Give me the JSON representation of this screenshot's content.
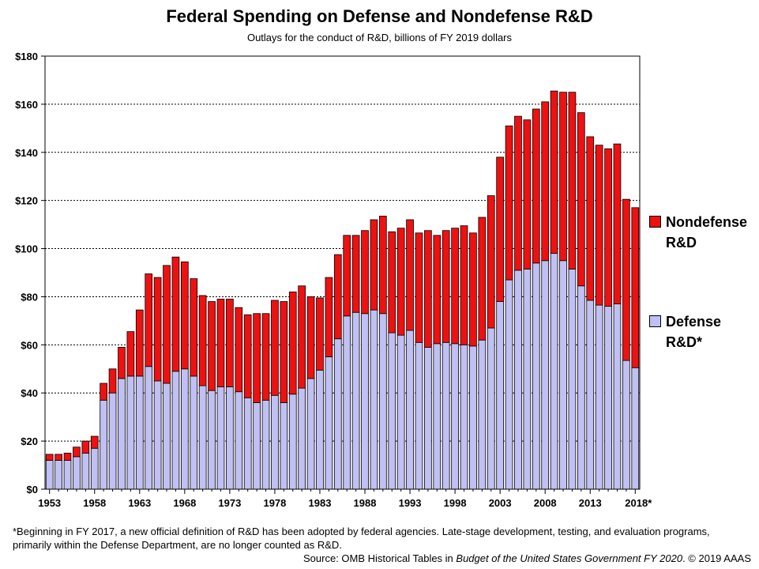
{
  "chart_data": {
    "type": "bar",
    "stacked": true,
    "title": "Federal Spending on Defense and Nondefense R&D",
    "subtitle": "Outlays for the conduct of R&D, billions of FY 2019  dollars",
    "x": [
      1953,
      1954,
      1955,
      1956,
      1957,
      1958,
      1959,
      1960,
      1961,
      1962,
      1963,
      1964,
      1965,
      1966,
      1967,
      1968,
      1969,
      1970,
      1971,
      1972,
      1973,
      1974,
      1975,
      1976,
      1977,
      1978,
      1979,
      1980,
      1981,
      1982,
      1983,
      1984,
      1985,
      1986,
      1987,
      1988,
      1989,
      1990,
      1991,
      1992,
      1993,
      1994,
      1995,
      1996,
      1997,
      1998,
      1999,
      2000,
      2001,
      2002,
      2003,
      2004,
      2005,
      2006,
      2007,
      2008,
      2009,
      2010,
      2011,
      2012,
      2013,
      2014,
      2015,
      2016,
      2017,
      2018
    ],
    "x_tick_labels": [
      "1953",
      "1958",
      "1963",
      "1968",
      "1973",
      "1978",
      "1983",
      "1988",
      "1993",
      "1998",
      "2003",
      "2008",
      "2013",
      "2018*"
    ],
    "x_tick_values": [
      1953,
      1958,
      1963,
      1968,
      1973,
      1978,
      1983,
      1988,
      1993,
      1998,
      2003,
      2008,
      2013,
      2018
    ],
    "y_tick_labels": [
      "$0",
      "$20",
      "$40",
      "$60",
      "$80",
      "$100",
      "$120",
      "$140",
      "$160",
      "$180"
    ],
    "ylim": [
      0,
      180
    ],
    "grid": "horizontal dashed",
    "legend_position": "right",
    "series": [
      {
        "name": "Defense R&D*",
        "color": "#c0c0f4",
        "values": [
          12,
          12,
          12,
          13.5,
          15,
          17,
          37,
          40,
          46,
          47,
          47,
          51,
          45,
          44,
          49,
          50,
          47,
          43,
          41,
          42.5,
          42.5,
          40.5,
          38,
          36,
          37,
          39,
          36,
          39.5,
          42,
          46,
          49.5,
          55,
          62.5,
          72,
          73.5,
          73,
          74.5,
          73,
          65,
          64,
          66,
          61,
          59,
          60.5,
          61,
          60.5,
          60,
          59.5,
          62,
          67,
          78,
          87,
          91,
          91.5,
          94,
          95,
          98,
          95,
          91.5,
          84.5,
          78.5,
          76.5,
          76,
          77,
          53.5,
          50.5
        ]
      },
      {
        "name": "Nondefense R&D",
        "color": "#ee1111",
        "values": [
          2.5,
          2.5,
          3,
          4,
          5,
          5,
          7,
          10,
          13,
          18.5,
          27.5,
          38.5,
          43,
          49,
          47.5,
          44.5,
          40.5,
          37.5,
          37,
          36.5,
          36.5,
          35,
          34.5,
          37,
          36,
          39.5,
          42,
          42.5,
          42.5,
          34,
          30,
          33,
          35,
          33.5,
          32,
          34.5,
          37.5,
          40.5,
          42,
          44.5,
          46,
          45.5,
          48.5,
          45,
          46.5,
          48,
          49.5,
          47,
          51,
          55,
          60,
          64,
          64,
          62,
          64,
          66,
          67.5,
          70,
          73.5,
          72,
          68,
          66.5,
          65.5,
          66.5,
          67,
          66.5
        ]
      }
    ],
    "legend": {
      "nondefense_label": "Nondefense R&D",
      "defense_label": "Defense R&D*"
    },
    "footnote": "*Beginning in FY 2017,  a new official definition of R&D has been adopted by federal agencies. Late-stage development, testing, and evaluation programs, primarily within the Defense Department, are no longer counted as R&D.",
    "source_prefix": "Source: OMB Historical Tables in ",
    "source_publication": "Budget of the United States Government FY 2020",
    "source_suffix": ".  © 2019 AAAS"
  }
}
